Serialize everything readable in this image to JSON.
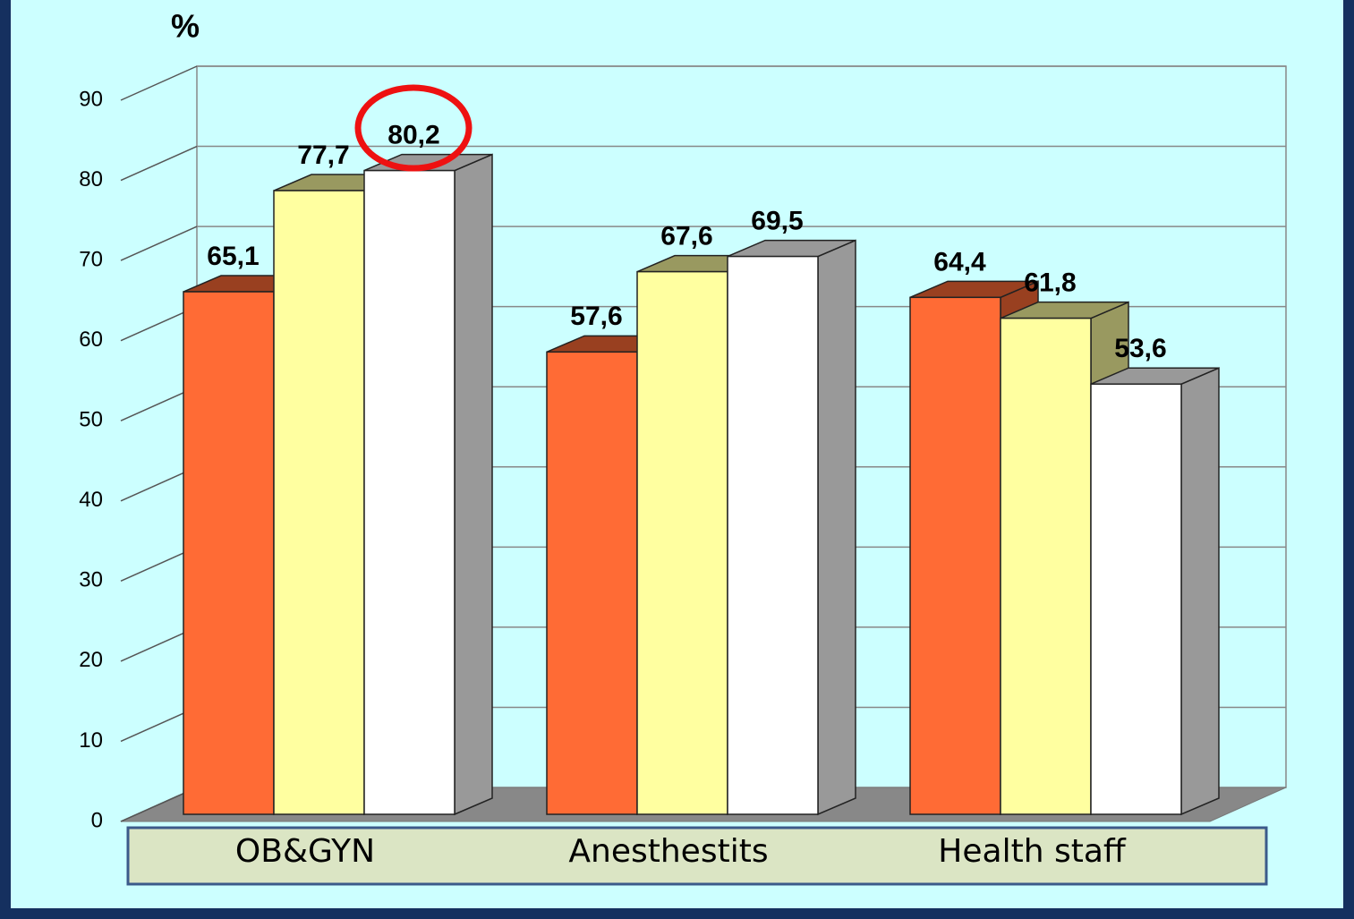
{
  "chart_data": {
    "type": "bar3d",
    "y_label": "%",
    "categories": [
      "OB&GYN",
      "Anesthestits",
      "Health staff"
    ],
    "series": [
      {
        "color": "#ff6b35",
        "values": [
          65.1,
          57.6,
          64.4
        ],
        "value_labels": [
          "65,1",
          "57,6",
          "64,4"
        ]
      },
      {
        "color": "#ffffa0",
        "values": [
          77.7,
          67.6,
          61.8
        ],
        "value_labels": [
          "77,7",
          "67,6",
          "61,8"
        ]
      },
      {
        "color": "#ffffff",
        "values": [
          80.2,
          69.5,
          53.6
        ],
        "value_labels": [
          "80,2",
          "69,5",
          "53,6"
        ]
      }
    ],
    "ylim": [
      0,
      90
    ],
    "yticks": [
      0,
      10,
      20,
      30,
      40,
      50,
      60,
      70,
      80,
      90
    ],
    "grid": true
  }
}
